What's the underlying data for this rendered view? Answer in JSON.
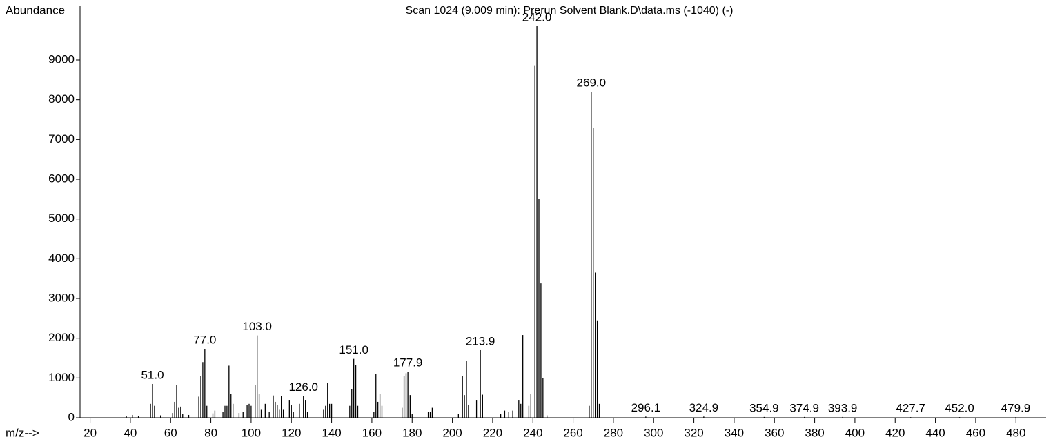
{
  "chart_data": {
    "type": "stem",
    "title": "Scan 1024 (9.009 min): Prerun Solvent Blank.D\\data.ms (-1040) (-)",
    "y_label": "Abundance",
    "x_label": "m/z-->",
    "color": "#000000",
    "xlim": [
      15,
      495
    ],
    "ylim": [
      0,
      10370
    ],
    "xticks": [
      20,
      40,
      60,
      80,
      100,
      120,
      140,
      160,
      180,
      200,
      220,
      240,
      260,
      280,
      300,
      320,
      340,
      360,
      380,
      400,
      420,
      440,
      460,
      480
    ],
    "yticks": [
      0,
      1000,
      2000,
      3000,
      4000,
      5000,
      6000,
      7000,
      8000,
      9000
    ],
    "x": [
      38,
      41,
      44,
      50,
      51,
      52,
      55,
      61,
      62,
      63,
      64,
      65,
      66,
      69,
      74,
      75,
      76,
      77,
      78,
      81,
      82,
      86,
      87,
      88,
      89,
      90,
      91,
      94,
      96,
      98,
      99,
      100,
      102,
      103,
      104,
      105,
      107,
      109,
      111,
      112,
      113,
      114,
      115,
      116,
      119,
      120,
      121,
      124,
      126,
      127,
      128,
      136,
      137,
      138,
      139,
      140,
      149,
      150,
      151,
      152,
      153,
      161,
      162,
      163,
      164,
      165,
      175,
      176,
      177,
      177.9,
      179,
      180,
      188,
      189,
      190,
      203,
      205,
      206,
      207,
      208,
      212,
      213.9,
      215,
      224,
      226,
      228,
      230,
      233,
      234,
      235,
      238,
      239,
      241,
      242,
      243,
      244,
      245,
      247,
      268,
      269,
      270,
      271,
      272,
      273,
      296.1,
      324.9,
      354.9,
      374.9,
      393.9,
      427.7,
      452,
      479.9
    ],
    "values": [
      40,
      70,
      50,
      350,
      850,
      300,
      60,
      120,
      400,
      830,
      250,
      280,
      90,
      70,
      530,
      1050,
      1400,
      1730,
      300,
      110,
      180,
      150,
      300,
      300,
      1310,
      600,
      350,
      120,
      150,
      320,
      350,
      300,
      820,
      2070,
      600,
      200,
      350,
      150,
      560,
      400,
      320,
      200,
      550,
      200,
      450,
      320,
      150,
      350,
      550,
      450,
      150,
      200,
      300,
      880,
      350,
      350,
      300,
      720,
      1480,
      1330,
      300,
      150,
      1100,
      400,
      600,
      300,
      250,
      1050,
      1120,
      1160,
      570,
      100,
      150,
      150,
      250,
      100,
      1050,
      570,
      1430,
      330,
      450,
      1700,
      580,
      100,
      180,
      150,
      180,
      450,
      350,
      2080,
      300,
      600,
      8850,
      9850,
      5500,
      3380,
      1000,
      60,
      300,
      8200,
      7300,
      3650,
      2450,
      350,
      30,
      30,
      20,
      20,
      20,
      15,
      15,
      15
    ],
    "peak_labels": [
      null,
      null,
      null,
      null,
      "51.0",
      null,
      null,
      null,
      null,
      null,
      null,
      null,
      null,
      null,
      null,
      null,
      null,
      "77.0",
      null,
      null,
      null,
      null,
      null,
      null,
      null,
      null,
      null,
      null,
      null,
      null,
      null,
      null,
      null,
      "103.0",
      null,
      null,
      null,
      null,
      null,
      null,
      null,
      null,
      null,
      null,
      null,
      null,
      null,
      null,
      "126.0",
      null,
      null,
      null,
      null,
      null,
      null,
      null,
      null,
      null,
      "151.0",
      null,
      null,
      null,
      null,
      null,
      null,
      null,
      null,
      null,
      null,
      "177.9",
      null,
      null,
      null,
      null,
      null,
      null,
      null,
      null,
      null,
      null,
      null,
      "213.9",
      null,
      null,
      null,
      null,
      null,
      null,
      null,
      null,
      null,
      null,
      null,
      "242.0",
      null,
      null,
      null,
      null,
      null,
      "269.0",
      null,
      null,
      null,
      null,
      "296.1",
      "324.9",
      "354.9",
      "374.9",
      "393.9",
      "427.7",
      "452.0",
      "479.9"
    ]
  }
}
